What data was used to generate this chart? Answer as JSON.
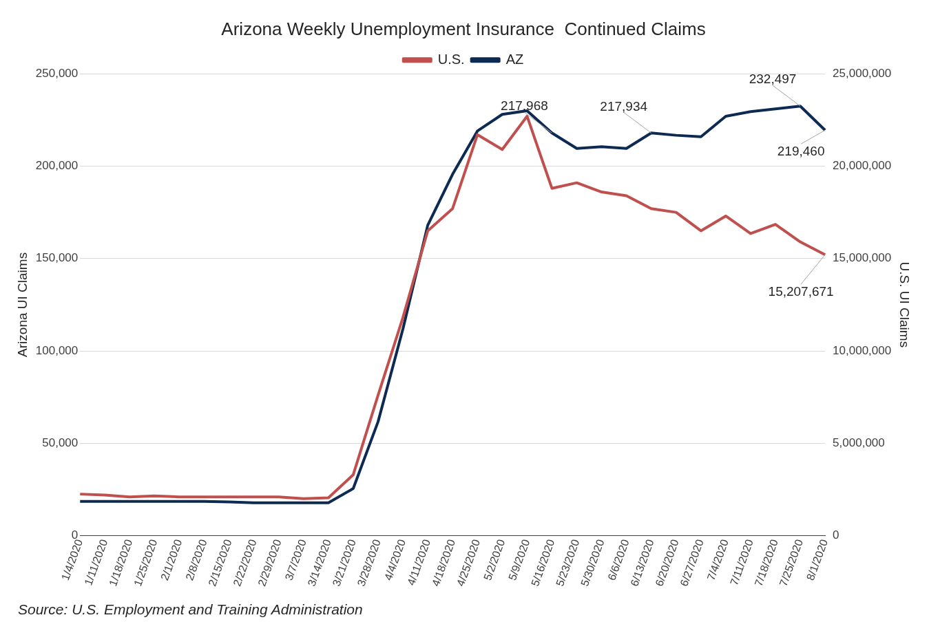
{
  "chart_data": {
    "type": "line",
    "title": "Arizona Weekly Unemployment Insurance  Continued Claims",
    "ylabel": "Arizona UI Claims",
    "y2label": "U.S. UI Claims",
    "categories": [
      "1/4/2020",
      "1/11/2020",
      "1/18/2020",
      "1/25/2020",
      "2/1/2020",
      "2/8/2020",
      "2/15/2020",
      "2/22/2020",
      "2/29/2020",
      "3/7/2020",
      "3/14/2020",
      "3/21/2020",
      "3/28/2020",
      "4/4/2020",
      "4/11/2020",
      "4/18/2020",
      "4/25/2020",
      "5/2/2020",
      "5/9/2020",
      "5/16/2020",
      "5/23/2020",
      "5/30/2020",
      "6/6/2020",
      "6/13/2020",
      "6/20/2020",
      "6/27/2020",
      "7/4/2020",
      "7/11/2020",
      "7/18/2020",
      "7/25/2020",
      "8/1/2020"
    ],
    "series": [
      {
        "name": "U.S.",
        "color": "#c0504d",
        "axis": "y2",
        "values": [
          2250000,
          2200000,
          2100000,
          2150000,
          2100000,
          2100000,
          2100000,
          2100000,
          2100000,
          2000000,
          2050000,
          3300000,
          7600000,
          11800000,
          16500000,
          17700000,
          21700000,
          20900000,
          22700000,
          18800000,
          19100000,
          18600000,
          18400000,
          17700000,
          17500000,
          16500000,
          17300000,
          16350000,
          16850000,
          15900000,
          15207671
        ],
        "value_labels": [
          null,
          null,
          null,
          null,
          null,
          null,
          null,
          null,
          null,
          null,
          null,
          null,
          null,
          null,
          null,
          null,
          null,
          null,
          null,
          null,
          null,
          null,
          null,
          null,
          null,
          null,
          null,
          null,
          null,
          null,
          "15,207,671"
        ]
      },
      {
        "name": "AZ",
        "color": "#0d2a52",
        "values": [
          18500,
          18500,
          18500,
          18500,
          18500,
          18500,
          18300,
          17800,
          17800,
          17800,
          17800,
          25500,
          61700,
          111800,
          168000,
          195600,
          219000,
          228000,
          230000,
          217968,
          209600,
          210500,
          209600,
          217934,
          216700,
          215900,
          227000,
          229500,
          231000,
          232497,
          219460
        ],
        "value_labels": [
          null,
          null,
          null,
          null,
          null,
          null,
          null,
          null,
          null,
          null,
          null,
          null,
          null,
          null,
          null,
          null,
          null,
          null,
          null,
          "217,968",
          null,
          null,
          null,
          "217,934",
          null,
          null,
          null,
          null,
          null,
          "232,497",
          "219,460"
        ]
      }
    ],
    "ylim": [
      0,
      250000
    ],
    "yticks": [
      0,
      {
        "value": 50000,
        "label": "50,000"
      },
      {
        "value": 100000,
        "label": "100,000"
      },
      {
        "value": 150000,
        "label": "150,000"
      },
      {
        "value": 200000,
        "label": "200,000"
      },
      {
        "value": 250000,
        "label": "250,000"
      }
    ],
    "y2lim": [
      0,
      25000000
    ],
    "y2ticks": [
      0,
      {
        "value": 5000000,
        "label": "5,000,000"
      },
      {
        "value": 10000000,
        "label": "10,000,000"
      },
      {
        "value": 15000000,
        "label": "15,000,000"
      },
      {
        "value": 20000000,
        "label": "20,000,000"
      },
      {
        "value": 25000000,
        "label": "25,000,000"
      }
    ],
    "grid": "y",
    "legend": "top",
    "marker": "none",
    "line_style": "solid",
    "annotations": [
      "Source: U.S. Employment and Training Administration"
    ]
  }
}
